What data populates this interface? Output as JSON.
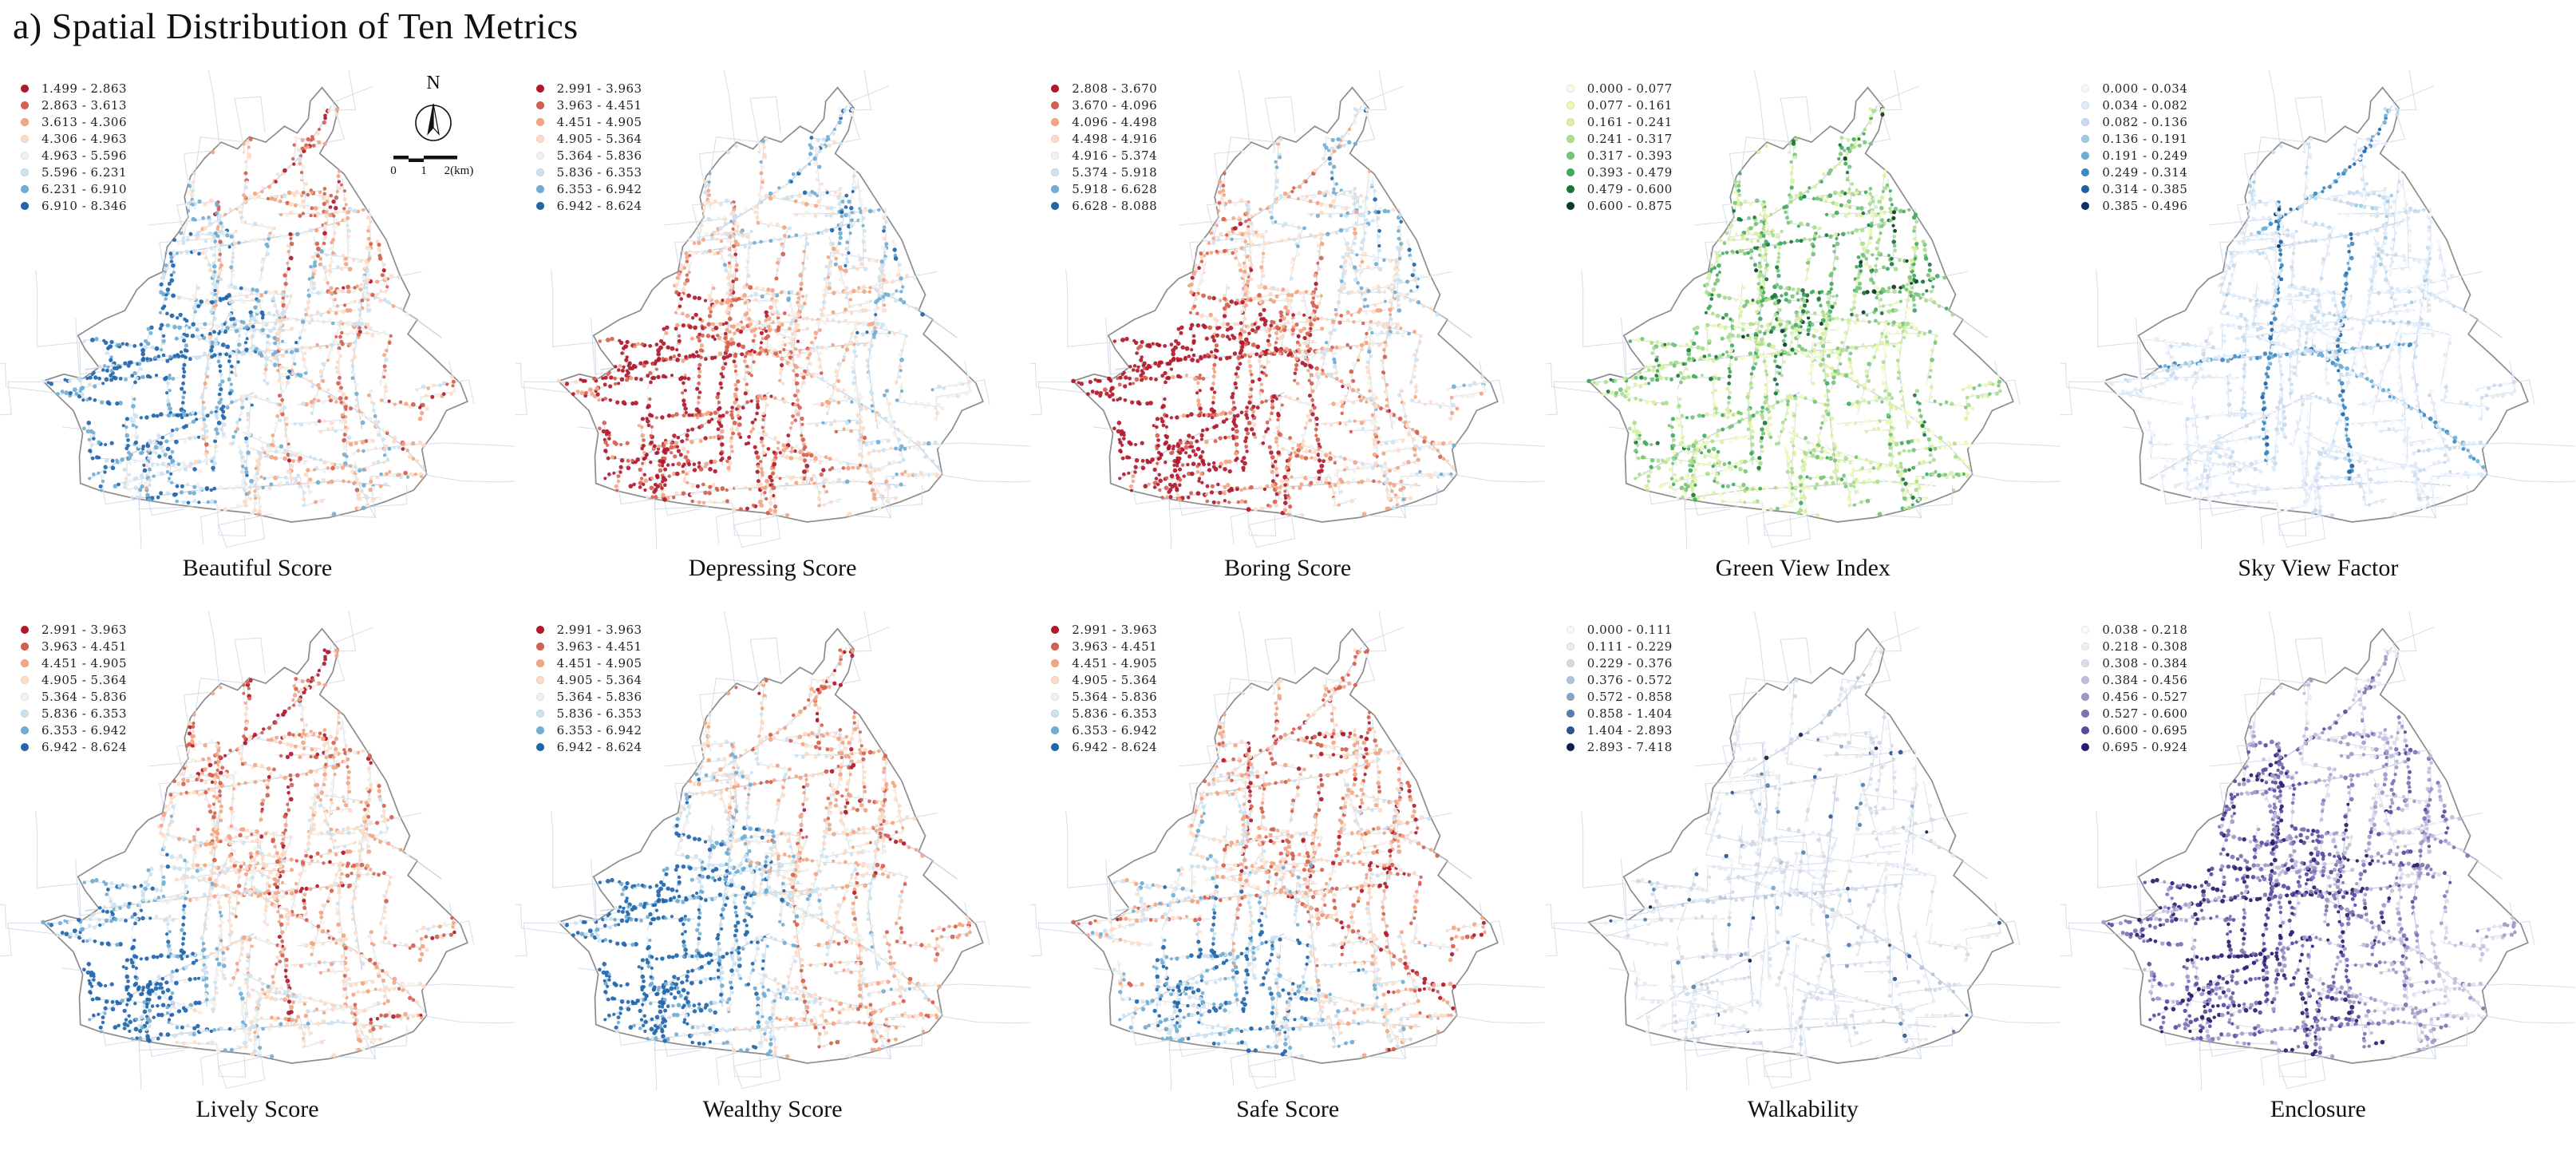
{
  "title": "a) Spatial Distribution of Ten Metrics",
  "north_label": "N",
  "scale_bar": {
    "labels": [
      "0",
      "1",
      "2(km)"
    ]
  },
  "map": {
    "boundary": [
      [
        0.625,
        0.01
      ],
      [
        0.66,
        0.055
      ],
      [
        0.648,
        0.105
      ],
      [
        0.62,
        0.155
      ],
      [
        0.672,
        0.2
      ],
      [
        0.7,
        0.245
      ],
      [
        0.728,
        0.29
      ],
      [
        0.762,
        0.345
      ],
      [
        0.79,
        0.42
      ],
      [
        0.812,
        0.465
      ],
      [
        0.798,
        0.5
      ],
      [
        0.828,
        0.52
      ],
      [
        0.808,
        0.552
      ],
      [
        0.86,
        0.6
      ],
      [
        0.92,
        0.66
      ],
      [
        0.935,
        0.7
      ],
      [
        0.89,
        0.72
      ],
      [
        0.87,
        0.76
      ],
      [
        0.838,
        0.805
      ],
      [
        0.848,
        0.86
      ],
      [
        0.82,
        0.895
      ],
      [
        0.76,
        0.92
      ],
      [
        0.7,
        0.94
      ],
      [
        0.64,
        0.955
      ],
      [
        0.56,
        0.965
      ],
      [
        0.47,
        0.945
      ],
      [
        0.38,
        0.935
      ],
      [
        0.3,
        0.925
      ],
      [
        0.22,
        0.912
      ],
      [
        0.15,
        0.895
      ],
      [
        0.11,
        0.88
      ],
      [
        0.108,
        0.82
      ],
      [
        0.115,
        0.77
      ],
      [
        0.095,
        0.72
      ],
      [
        0.055,
        0.68
      ],
      [
        0.03,
        0.655
      ],
      [
        0.075,
        0.64
      ],
      [
        0.115,
        0.65
      ],
      [
        0.15,
        0.625
      ],
      [
        0.12,
        0.585
      ],
      [
        0.105,
        0.555
      ],
      [
        0.16,
        0.52
      ],
      [
        0.205,
        0.5
      ],
      [
        0.23,
        0.455
      ],
      [
        0.255,
        0.43
      ],
      [
        0.285,
        0.415
      ],
      [
        0.295,
        0.36
      ],
      [
        0.318,
        0.33
      ],
      [
        0.34,
        0.295
      ],
      [
        0.332,
        0.25
      ],
      [
        0.345,
        0.205
      ],
      [
        0.375,
        0.165
      ],
      [
        0.41,
        0.13
      ],
      [
        0.445,
        0.145
      ],
      [
        0.47,
        0.118
      ],
      [
        0.505,
        0.13
      ],
      [
        0.545,
        0.095
      ],
      [
        0.572,
        0.11
      ],
      [
        0.596,
        0.078
      ],
      [
        0.6,
        0.04
      ]
    ],
    "roads": [
      {
        "major": true,
        "pts": [
          [
            0.36,
            0.33
          ],
          [
            0.45,
            0.27
          ],
          [
            0.52,
            0.22
          ],
          [
            0.58,
            0.16
          ],
          [
            0.625,
            0.09
          ],
          [
            0.645,
            0.05
          ]
        ]
      },
      {
        "major": false,
        "pts": [
          [
            0.34,
            0.37
          ],
          [
            0.46,
            0.35
          ],
          [
            0.58,
            0.33
          ],
          [
            0.68,
            0.3
          ]
        ]
      },
      {
        "major": true,
        "pts": [
          [
            0.4,
            0.26
          ],
          [
            0.41,
            0.4
          ],
          [
            0.39,
            0.55
          ],
          [
            0.37,
            0.7
          ],
          [
            0.38,
            0.84
          ]
        ]
      },
      {
        "major": true,
        "pts": [
          [
            0.56,
            0.33
          ],
          [
            0.545,
            0.47
          ],
          [
            0.53,
            0.6
          ],
          [
            0.545,
            0.74
          ],
          [
            0.56,
            0.88
          ]
        ]
      },
      {
        "major": true,
        "pts": [
          [
            0.46,
            0.58
          ],
          [
            0.58,
            0.645
          ],
          [
            0.7,
            0.72
          ],
          [
            0.8,
            0.8
          ],
          [
            0.85,
            0.86
          ]
        ]
      },
      {
        "major": false,
        "pts": [
          [
            0.73,
            0.35
          ],
          [
            0.71,
            0.48
          ],
          [
            0.69,
            0.62
          ],
          [
            0.71,
            0.76
          ]
        ]
      },
      {
        "major": false,
        "pts": [
          [
            0.13,
            0.87
          ],
          [
            0.26,
            0.79
          ],
          [
            0.38,
            0.73
          ],
          [
            0.48,
            0.68
          ]
        ]
      },
      {
        "major": true,
        "pts": [
          [
            0.12,
            0.63
          ],
          [
            0.26,
            0.61
          ],
          [
            0.42,
            0.595
          ],
          [
            0.56,
            0.585
          ],
          [
            0.7,
            0.57
          ]
        ]
      },
      {
        "major": false,
        "pts": [
          [
            0.22,
            0.915
          ],
          [
            0.36,
            0.895
          ],
          [
            0.52,
            0.885
          ],
          [
            0.66,
            0.875
          ],
          [
            0.77,
            0.885
          ]
        ]
      },
      {
        "major": false,
        "pts": [
          [
            0.7,
            0.45
          ],
          [
            0.8,
            0.5
          ],
          [
            0.88,
            0.56
          ]
        ]
      }
    ]
  },
  "panels": [
    {
      "caption": "Beautiful Score",
      "legend": [
        {
          "color": "#b2182b",
          "label": "1.499 - 2.863"
        },
        {
          "color": "#d6604d",
          "label": "2.863 - 3.613"
        },
        {
          "color": "#f4a582",
          "label": "3.613 - 4.306"
        },
        {
          "color": "#fddbc7",
          "label": "4.306 - 4.963"
        },
        {
          "color": "#f2f1ec",
          "label": "4.963 - 5.596"
        },
        {
          "color": "#cde2ef",
          "label": "5.596 - 6.231"
        },
        {
          "color": "#71aed3",
          "label": "6.231 - 6.910"
        },
        {
          "color": "#2166ac",
          "label": "6.910 - 8.346"
        }
      ],
      "pattern": {
        "base": 0.48,
        "gx": -0.4,
        "gy": 0.25,
        "blob": [
          0.28,
          0.55,
          0.35,
          0.28
        ],
        "noise": 0.5,
        "roadVar": 0.3,
        "majorBias": -0.2,
        "density": 1,
        "spike": 0,
        "spikeP": 0
      }
    },
    {
      "caption": "Depressing Score",
      "legend": [
        {
          "color": "#b2182b",
          "label": "2.991 - 3.963"
        },
        {
          "color": "#d6604d",
          "label": "3.963 - 4.451"
        },
        {
          "color": "#f4a582",
          "label": "4.451 - 4.905"
        },
        {
          "color": "#fddbc7",
          "label": "4.905 - 5.364"
        },
        {
          "color": "#f2f1ec",
          "label": "5.364 - 5.836"
        },
        {
          "color": "#cde2ef",
          "label": "5.836 - 6.353"
        },
        {
          "color": "#71aed3",
          "label": "6.353 - 6.942"
        },
        {
          "color": "#2166ac",
          "label": "6.942 - 8.624"
        }
      ],
      "pattern": {
        "base": 0.52,
        "gx": 0.5,
        "gy": -0.3,
        "blob": [
          0.3,
          0.68,
          -0.3,
          0.25
        ],
        "noise": 0.45,
        "roadVar": 0.3,
        "majorBias": -0.05,
        "density": 1,
        "spike": 0,
        "spikeP": 0
      }
    },
    {
      "caption": "Boring Score",
      "legend": [
        {
          "color": "#b2182b",
          "label": "2.808 - 3.670"
        },
        {
          "color": "#d6604d",
          "label": "3.670 - 4.096"
        },
        {
          "color": "#f4a582",
          "label": "4.096 - 4.498"
        },
        {
          "color": "#fddbc7",
          "label": "4.498 - 4.916"
        },
        {
          "color": "#f2f1ec",
          "label": "4.916 - 5.374"
        },
        {
          "color": "#cde2ef",
          "label": "5.374 - 5.918"
        },
        {
          "color": "#71aed3",
          "label": "5.918 - 6.628"
        },
        {
          "color": "#2166ac",
          "label": "6.628 - 8.088"
        }
      ],
      "pattern": {
        "base": 0.47,
        "gx": 0.55,
        "gy": -0.28,
        "blob": [
          0.28,
          0.68,
          -0.35,
          0.25
        ],
        "noise": 0.45,
        "roadVar": 0.35,
        "majorBias": -0.08,
        "density": 1,
        "spike": 0,
        "spikeP": 0
      }
    },
    {
      "caption": "Green View Index",
      "legend": [
        {
          "color": "#f7fce0",
          "label": "0.000 - 0.077"
        },
        {
          "color": "#eef8b2",
          "label": "0.077 - 0.161"
        },
        {
          "color": "#d9f0a3",
          "label": "0.161 - 0.241"
        },
        {
          "color": "#addd8e",
          "label": "0.241 - 0.317"
        },
        {
          "color": "#78c679",
          "label": "0.317 - 0.393"
        },
        {
          "color": "#41ab5d",
          "label": "0.393 - 0.479"
        },
        {
          "color": "#19753c",
          "label": "0.479 - 0.600"
        },
        {
          "color": "#0c3d21",
          "label": "0.600 - 0.875"
        }
      ],
      "pattern": {
        "base": 0.45,
        "gx": 0.05,
        "gy": -0.18,
        "blob": [
          0,
          0,
          0,
          1
        ],
        "noise": 0.55,
        "roadVar": 0.5,
        "majorBias": 0.05,
        "density": 1,
        "spike": 0,
        "spikeP": 0
      }
    },
    {
      "caption": "Sky View Factor",
      "legend": [
        {
          "color": "#f4f9fe",
          "label": "0.000 - 0.034"
        },
        {
          "color": "#e0ecf7",
          "label": "0.034 - 0.082"
        },
        {
          "color": "#c6dbef",
          "label": "0.082 - 0.136"
        },
        {
          "color": "#9ecae1",
          "label": "0.136 - 0.191"
        },
        {
          "color": "#6baed6",
          "label": "0.191 - 0.249"
        },
        {
          "color": "#3a8ac1",
          "label": "0.249 - 0.314"
        },
        {
          "color": "#1b63a8",
          "label": "0.314 - 0.385"
        },
        {
          "color": "#0a3364",
          "label": "0.385 - 0.496"
        }
      ],
      "pattern": {
        "base": 0.18,
        "gx": 0,
        "gy": -0.05,
        "blob": [
          0,
          0,
          0,
          1
        ],
        "noise": 0.3,
        "roadVar": 0.2,
        "majorBias": 0.5,
        "density": 1,
        "spike": 0,
        "spikeP": 0
      }
    },
    {
      "caption": "Lively Score",
      "legend": [
        {
          "color": "#b2182b",
          "label": "2.991 - 3.963"
        },
        {
          "color": "#d6604d",
          "label": "3.963 - 4.451"
        },
        {
          "color": "#f4a582",
          "label": "4.451 - 4.905"
        },
        {
          "color": "#fddbc7",
          "label": "4.905 - 5.364"
        },
        {
          "color": "#f2f1ec",
          "label": "5.364 - 5.836"
        },
        {
          "color": "#cde2ef",
          "label": "5.836 - 6.353"
        },
        {
          "color": "#71aed3",
          "label": "6.353 - 6.942"
        },
        {
          "color": "#2166ac",
          "label": "6.942 - 8.624"
        }
      ],
      "pattern": {
        "base": 0.42,
        "gx": -0.3,
        "gy": 0.25,
        "blob": [
          0.2,
          0.75,
          0.5,
          0.2
        ],
        "noise": 0.42,
        "roadVar": 0.3,
        "majorBias": -0.18,
        "density": 1,
        "spike": 0,
        "spikeP": 0
      }
    },
    {
      "caption": "Wealthy Score",
      "legend": [
        {
          "color": "#b2182b",
          "label": "2.991 - 3.963"
        },
        {
          "color": "#d6604d",
          "label": "3.963 - 4.451"
        },
        {
          "color": "#f4a582",
          "label": "4.451 - 4.905"
        },
        {
          "color": "#fddbc7",
          "label": "4.905 - 5.364"
        },
        {
          "color": "#f2f1ec",
          "label": "5.364 - 5.836"
        },
        {
          "color": "#cde2ef",
          "label": "5.836 - 6.353"
        },
        {
          "color": "#71aed3",
          "label": "6.353 - 6.942"
        },
        {
          "color": "#2166ac",
          "label": "6.942 - 8.624"
        }
      ],
      "pattern": {
        "base": 0.45,
        "gx": -0.4,
        "gy": 0.3,
        "blob": [
          0.25,
          0.65,
          0.4,
          0.25
        ],
        "noise": 0.45,
        "roadVar": 0.3,
        "majorBias": -0.12,
        "density": 1,
        "spike": 0,
        "spikeP": 0
      }
    },
    {
      "caption": "Safe Score",
      "legend": [
        {
          "color": "#b2182b",
          "label": "2.991 - 3.963"
        },
        {
          "color": "#d6604d",
          "label": "3.963 - 4.451"
        },
        {
          "color": "#f4a582",
          "label": "4.451 - 4.905"
        },
        {
          "color": "#fddbc7",
          "label": "4.905 - 5.364"
        },
        {
          "color": "#f2f1ec",
          "label": "5.364 - 5.836"
        },
        {
          "color": "#cde2ef",
          "label": "5.836 - 6.353"
        },
        {
          "color": "#71aed3",
          "label": "6.353 - 6.942"
        },
        {
          "color": "#2166ac",
          "label": "6.942 - 8.624"
        }
      ],
      "pattern": {
        "base": 0.4,
        "gx": -0.1,
        "gy": 0.22,
        "blob": [
          0.38,
          0.78,
          0.35,
          0.18
        ],
        "noise": 0.5,
        "roadVar": 0.35,
        "majorBias": -0.15,
        "density": 1,
        "spike": 0,
        "spikeP": 0
      }
    },
    {
      "caption": "Walkability",
      "legend": [
        {
          "color": "#f5f8fb",
          "label": "0.000 - 0.111"
        },
        {
          "color": "#e6ebf2",
          "label": "0.111 - 0.229"
        },
        {
          "color": "#d0d9e6",
          "label": "0.229 - 0.376"
        },
        {
          "color": "#b0c2d8",
          "label": "0.376 - 0.572"
        },
        {
          "color": "#86a5c6",
          "label": "0.572 - 0.858"
        },
        {
          "color": "#5580ad",
          "label": "0.858 - 1.404"
        },
        {
          "color": "#2d538c",
          "label": "1.404 - 2.893"
        },
        {
          "color": "#10204d",
          "label": "2.893 - 7.418"
        }
      ],
      "pattern": {
        "base": 0.15,
        "gx": 0,
        "gy": 0.05,
        "blob": [
          0,
          0,
          0,
          1
        ],
        "noise": 0.3,
        "roadVar": 0.2,
        "majorBias": 0.1,
        "density": 0.6,
        "spike": 0.55,
        "spikeP": 0.05
      }
    },
    {
      "caption": "Enclosure",
      "legend": [
        {
          "color": "#f9f8fc",
          "label": "0.038 - 0.218"
        },
        {
          "color": "#efedf5",
          "label": "0.218 - 0.308"
        },
        {
          "color": "#dcdcec",
          "label": "0.308 - 0.384"
        },
        {
          "color": "#bfbfdd",
          "label": "0.384 - 0.456"
        },
        {
          "color": "#9e9ac8",
          "label": "0.456 - 0.527"
        },
        {
          "color": "#7d73b5",
          "label": "0.527 - 0.600"
        },
        {
          "color": "#5a4a9f",
          "label": "0.600 - 0.695"
        },
        {
          "color": "#2a1c6e",
          "label": "0.695 - 0.924"
        }
      ],
      "pattern": {
        "base": 0.5,
        "gx": -0.22,
        "gy": 0.22,
        "blob": [
          0.35,
          0.6,
          0.2,
          0.3
        ],
        "noise": 0.5,
        "roadVar": 0.4,
        "majorBias": 0.08,
        "density": 0.9,
        "spike": 0,
        "spikeP": 0
      }
    }
  ]
}
